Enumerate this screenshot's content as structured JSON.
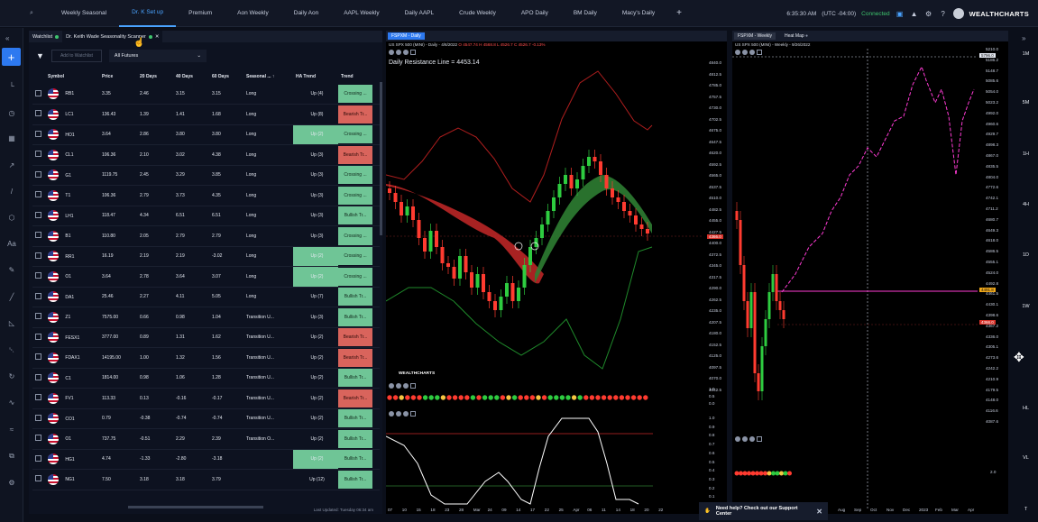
{
  "topbar": {
    "tabs": [
      "Weekly Seasonal",
      "Dr. K Set up",
      "Premium",
      "Aon Weekly",
      "Daily Aon",
      "AAPL Weekly",
      "Daily AAPL",
      "Crude Weekly",
      "APO Daily",
      "BM Daily",
      "Macy's Daily"
    ],
    "active_tab": "Dr. K Set up",
    "time": "6:35:30 AM",
    "timezone": "(UTC -04:00)",
    "connection": "Connected",
    "logo": "WEALTHCHARTS"
  },
  "scanner": {
    "tabs": [
      "Watchlist",
      "Dr. Keith Wade Seasonality Scanner"
    ],
    "add_watchlist_placeholder": "Add to Watchlist",
    "filter_select": "All Futures",
    "columns": [
      "Symbol",
      "Price",
      "20 Days",
      "40 Days",
      "60 Days",
      "Seasonal ...",
      "HA Trend",
      "Trend"
    ],
    "rows": [
      {
        "symbol": "RB1",
        "price": "3.35",
        "d20": "2.46",
        "d40": "3.15",
        "d60": "3.15",
        "seasonal": "Long",
        "ha": "Up (4)",
        "ha_green": false,
        "trend": "Crossing ...",
        "trend_color": "green"
      },
      {
        "symbol": "LC1",
        "price": "136.43",
        "d20": "1.39",
        "d40": "1.41",
        "d60": "1.68",
        "seasonal": "Long",
        "ha": "Up (8)",
        "ha_green": false,
        "trend": "Bearish Tr...",
        "trend_color": "red"
      },
      {
        "symbol": "HO1",
        "price": "3.64",
        "d20": "2.86",
        "d40": "3.80",
        "d60": "3.80",
        "seasonal": "Long",
        "ha": "Up (2)",
        "ha_green": true,
        "trend": "Crossing ...",
        "trend_color": "green"
      },
      {
        "symbol": "CL1",
        "price": "106.36",
        "d20": "2.10",
        "d40": "3.02",
        "d60": "4.38",
        "seasonal": "Long",
        "ha": "Up (3)",
        "ha_green": false,
        "trend": "Bearish Tr...",
        "trend_color": "red"
      },
      {
        "symbol": "G1",
        "price": "1119.75",
        "d20": "2.45",
        "d40": "3.29",
        "d60": "3.85",
        "seasonal": "Long",
        "ha": "Up (3)",
        "ha_green": false,
        "trend": "Crossing ...",
        "trend_color": "green"
      },
      {
        "symbol": "T1",
        "price": "106.36",
        "d20": "2.79",
        "d40": "3.73",
        "d60": "4.35",
        "seasonal": "Long",
        "ha": "Up (3)",
        "ha_green": false,
        "trend": "Crossing ...",
        "trend_color": "green"
      },
      {
        "symbol": "LH1",
        "price": "118.47",
        "d20": "4.34",
        "d40": "6.51",
        "d60": "6.51",
        "seasonal": "Long",
        "ha": "Up (3)",
        "ha_green": false,
        "trend": "Bullish Tr...",
        "trend_color": "green"
      },
      {
        "symbol": "B1",
        "price": "110.80",
        "d20": "2.05",
        "d40": "2.79",
        "d60": "2.79",
        "seasonal": "Long",
        "ha": "Up (3)",
        "ha_green": false,
        "trend": "Crossing ...",
        "trend_color": "green"
      },
      {
        "symbol": "RR1",
        "price": "16.19",
        "d20": "2.19",
        "d40": "2.19",
        "d60": "-3.02",
        "seasonal": "Long",
        "ha": "Up (2)",
        "ha_green": true,
        "trend": "Crossing ...",
        "trend_color": "green"
      },
      {
        "symbol": "O1",
        "price": "3.64",
        "d20": "2.78",
        "d40": "3.64",
        "d60": "3.07",
        "seasonal": "Long",
        "ha": "Up (2)",
        "ha_green": true,
        "trend": "Crossing ...",
        "trend_color": "green"
      },
      {
        "symbol": "DA1",
        "price": "25.46",
        "d20": "2.27",
        "d40": "4.11",
        "d60": "5.05",
        "seasonal": "Long",
        "ha": "Up (7)",
        "ha_green": false,
        "trend": "Bullish Tr...",
        "trend_color": "green"
      },
      {
        "symbol": "Z1",
        "price": "7575.00",
        "d20": "0.66",
        "d40": "0.98",
        "d60": "1.04",
        "seasonal": "Transition U...",
        "ha": "Up (3)",
        "ha_green": false,
        "trend": "Bullish Tr...",
        "trend_color": "green"
      },
      {
        "symbol": "FESX1",
        "price": "3777.00",
        "d20": "0.89",
        "d40": "1.31",
        "d60": "1.62",
        "seasonal": "Transition U...",
        "ha": "Up (2)",
        "ha_green": false,
        "trend": "Bearish Tr...",
        "trend_color": "red"
      },
      {
        "symbol": "FDAX1",
        "price": "14195.00",
        "d20": "1.00",
        "d40": "1.32",
        "d60": "1.56",
        "seasonal": "Transition U...",
        "ha": "Up (2)",
        "ha_green": false,
        "trend": "Bearish Tr...",
        "trend_color": "red"
      },
      {
        "symbol": "C1",
        "price": "1814.00",
        "d20": "0.98",
        "d40": "1.06",
        "d60": "1.28",
        "seasonal": "Transition U...",
        "ha": "Up (2)",
        "ha_green": false,
        "trend": "Bullish Tr...",
        "trend_color": "green"
      },
      {
        "symbol": "FV1",
        "price": "113.33",
        "d20": "0.13",
        "d40": "-0.16",
        "d60": "-0.17",
        "seasonal": "Transition U...",
        "ha": "Up (2)",
        "ha_green": false,
        "trend": "Bearish Tr...",
        "trend_color": "red"
      },
      {
        "symbol": "CO1",
        "price": "0.79",
        "d20": "-0.38",
        "d40": "-0.74",
        "d60": "-0.74",
        "seasonal": "Transition U...",
        "ha": "Up (2)",
        "ha_green": false,
        "trend": "Bullish Tr...",
        "trend_color": "green"
      },
      {
        "symbol": "O1",
        "price": "737.75",
        "d20": "-0.51",
        "d40": "2.29",
        "d60": "2.39",
        "seasonal": "Transition O...",
        "ha": "Up (2)",
        "ha_green": false,
        "trend": "Bullish Tr...",
        "trend_color": "green"
      },
      {
        "symbol": "HG1",
        "price": "4.74",
        "d20": "-1.33",
        "d40": "-2.80",
        "d60": "-3.18",
        "seasonal": "",
        "ha": "Up (2)",
        "ha_green": true,
        "trend": "Bullish Tr...",
        "trend_color": "green"
      },
      {
        "symbol": "NG1",
        "price": "7.50",
        "d20": "3.18",
        "d40": "3.18",
        "d60": "3.79",
        "seasonal": "",
        "ha": "Up (12)",
        "ha_green": false,
        "trend": "Bullish Tr...",
        "trend_color": "green"
      }
    ],
    "last_updated": "Last Updated: Tuesday 06:34 am"
  },
  "daily_chart": {
    "tab": "FSPXM - Daily",
    "subinfo_prefix": "US SPX 500 (MINI) - Daily - 4/6/2022",
    "subinfo_values": "O 4547.74  H 4568.8  L 4526.7  C 4526.7  -0.13%",
    "resistance": "Daily Resistance Line = 4453.14",
    "price_tag": "4366.0",
    "wc_logo": "WEALTHCHARTS",
    "y_labels": [
      "4840.0",
      "4812.5",
      "4785.0",
      "4757.5",
      "4730.0",
      "4702.5",
      "4675.0",
      "4647.5",
      "4620.0",
      "4592.5",
      "4565.0",
      "4537.5",
      "4510.0",
      "4482.5",
      "4455.0",
      "4427.5",
      "4400.0",
      "4372.5",
      "4345.0",
      "4317.5",
      "4290.0",
      "4262.5",
      "4235.0",
      "4207.5",
      "4180.0",
      "4152.5",
      "4125.0",
      "4097.5",
      "4070.0",
      "4042.5"
    ],
    "osc1_labels": [
      "1.0",
      "0.5",
      "0.0"
    ],
    "osc2_labels": [
      "1.0",
      "0.9",
      "0.8",
      "0.7",
      "0.6",
      "0.5",
      "0.4",
      "0.3",
      "0.2",
      "0.1",
      "0.0"
    ],
    "x_labels": [
      "07",
      "10",
      "15",
      "18",
      "23",
      "28",
      "Mar",
      "24",
      "09",
      "14",
      "17",
      "22",
      "25",
      "Apr",
      "06",
      "11",
      "14",
      "18",
      "20",
      "22"
    ]
  },
  "weekly_chart": {
    "tab": "FSPXM - Weekly",
    "tab2": "Heat Map",
    "subinfo": "US SPX 500 (MINI) - Weekly - 9/26/2022",
    "price_tag_top": "5796.0",
    "price_tag_mid": "4491.8",
    "price_tag_low": "4366.0",
    "y_labels": [
      "5210.0",
      "5186.2",
      "5148.7",
      "5085.6",
      "5054.0",
      "5023.2",
      "4992.0",
      "4960.6",
      "4929.7",
      "4898.3",
      "4867.0",
      "4835.5",
      "4804.0",
      "4772.6",
      "4742.1",
      "4711.2",
      "4680.7",
      "4649.3",
      "4618.0",
      "4586.5",
      "4555.1",
      "4524.0",
      "4492.8",
      "4461.5",
      "4430.1",
      "4398.6",
      "4367.2",
      "4336.0",
      "4305.1",
      "4273.6",
      "4242.2",
      "4210.9",
      "4179.5",
      "4148.0",
      "4116.6",
      "4087.6"
    ],
    "osc_label": "2.0",
    "x_labels": [
      "Aug",
      "Sep",
      "Oct",
      "Nov",
      "Dec",
      "2023",
      "Feb",
      "Mar",
      "Apr"
    ]
  },
  "timeframes": [
    "1M",
    "5M",
    "1H",
    "4H",
    "1D",
    "1W",
    "HL",
    "VL",
    "T"
  ],
  "help_toast": "Need help? Check out our Support Center",
  "colors": {
    "accent": "#2d79f0",
    "up": "#3ec46d",
    "down": "#ff3b30",
    "trend_green": "#6fc596",
    "trend_red": "#d9645c",
    "magenta": "#ff3bd4"
  }
}
